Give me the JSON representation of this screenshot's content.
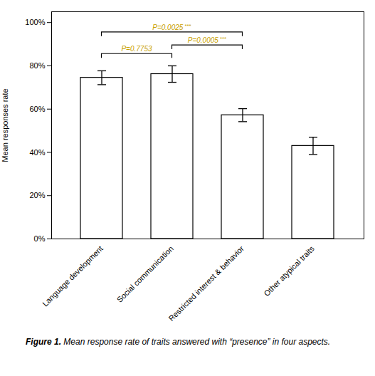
{
  "chart_data": {
    "type": "bar",
    "categories": [
      "Language development",
      "Social communication",
      "Restricted interest & behavior",
      "Other atypical traits"
    ],
    "values": [
      0.745,
      0.762,
      0.572,
      0.43
    ],
    "errors": [
      0.032,
      0.038,
      0.03,
      0.04
    ],
    "color": "#FFFFFF",
    "ylabel": "Mean responses rate",
    "ylim": [
      0,
      1.05
    ],
    "yticks": [
      {
        "value": 0.0,
        "label": "0%"
      },
      {
        "value": 0.2,
        "label": "20%"
      },
      {
        "value": 0.4,
        "label": "40%"
      },
      {
        "value": 0.6,
        "label": "60%"
      },
      {
        "value": 0.8,
        "label": "80%"
      },
      {
        "value": 1.0,
        "label": "100%"
      }
    ],
    "annotations": [
      {
        "from": "Language development",
        "to": "Social communication",
        "y": 0.855,
        "text": "P=0.7753",
        "color": "#C8A000"
      },
      {
        "from": "Language development",
        "to": "Restricted interest & behavior",
        "y": 0.955,
        "text": "P=0.0025",
        "stars": "***",
        "color": "#C8A000"
      },
      {
        "from": "Social communication",
        "to": "Restricted interest & behavior",
        "y": 0.895,
        "text": "P=0.0005",
        "stars": "***",
        "color": "#C8A000"
      }
    ],
    "caption_label": "Figure 1.",
    "caption": "Mean response rate of traits answered with “presence” in four aspects."
  }
}
